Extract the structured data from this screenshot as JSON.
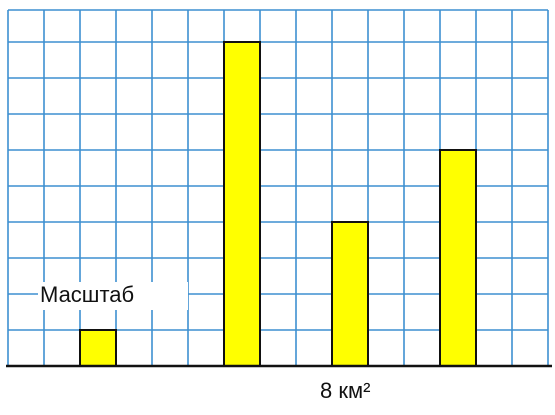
{
  "chart_data": {
    "type": "bar",
    "categories": [
      null,
      null,
      null,
      null
    ],
    "values": [
      1,
      9,
      4,
      6
    ],
    "color": "#ffff00",
    "ylim": [
      0,
      10
    ],
    "grid": true,
    "annotations": [
      "Масштаб",
      "8 км²"
    ]
  }
}
